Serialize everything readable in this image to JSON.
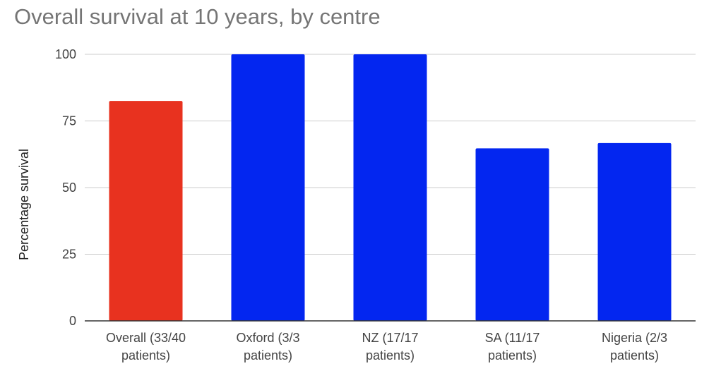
{
  "chart_data": {
    "type": "bar",
    "title": "Overall survival at 10 years, by centre",
    "xlabel": "",
    "ylabel": "Percentage survival",
    "ylim": [
      0,
      100
    ],
    "yticks": [
      0,
      25,
      50,
      75,
      100
    ],
    "grid": true,
    "legend": "none",
    "categories": [
      [
        "Overall (33/40",
        "patients)"
      ],
      [
        "Oxford (3/3",
        "patients)"
      ],
      [
        "NZ (17/17",
        "patients)"
      ],
      [
        "SA (11/17",
        "patients)"
      ],
      [
        "Nigeria (2/3",
        "patients)"
      ]
    ],
    "values": [
      82.5,
      100,
      100,
      64.7,
      66.7
    ],
    "colors": [
      "#e8321f",
      "#0326f0",
      "#0326f0",
      "#0326f0",
      "#0326f0"
    ]
  }
}
